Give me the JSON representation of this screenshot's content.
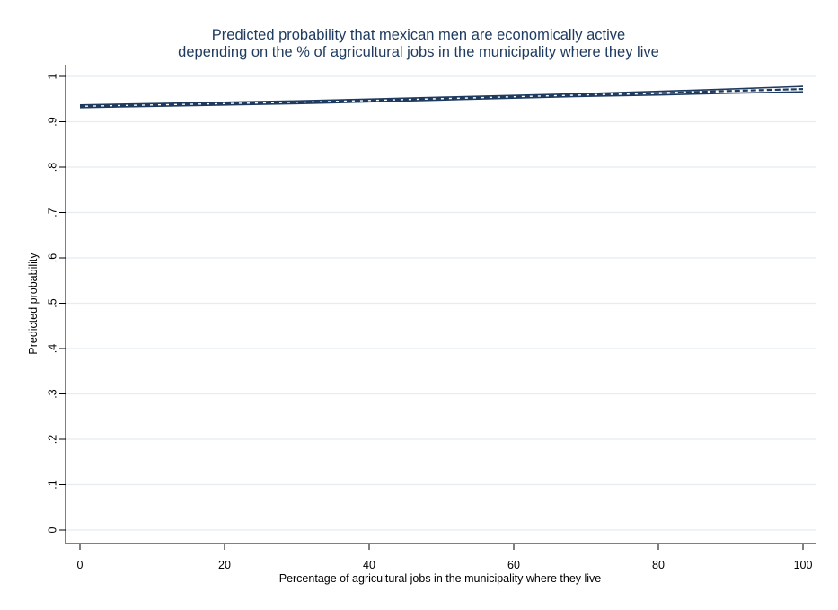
{
  "chart_data": {
    "type": "line",
    "title": [
      "Predicted probability that mexican men are economically active",
      "depending on the % of agricultural jobs in the municipality where they live"
    ],
    "xlabel": "Percentage of agricultural jobs in the municipality where they live",
    "ylabel": "Predicted probability",
    "xlim": [
      0,
      100
    ],
    "ylim": [
      0,
      1
    ],
    "xticks": [
      0,
      20,
      40,
      60,
      80,
      100
    ],
    "xtick_labels": [
      "0",
      "20",
      "40",
      "60",
      "80",
      "100"
    ],
    "yticks": [
      0,
      0.1,
      0.2,
      0.3,
      0.4,
      0.5,
      0.6,
      0.7,
      0.8,
      0.9,
      1
    ],
    "ytick_labels": [
      "0",
      ".1",
      ".2",
      ".3",
      ".4",
      ".5",
      ".6",
      ".7",
      ".8",
      ".9",
      "1"
    ],
    "grid": true,
    "x": [
      0,
      10,
      20,
      30,
      40,
      50,
      60,
      70,
      80,
      90,
      100
    ],
    "series": [
      {
        "values": [
          0.934,
          0.937,
          0.94,
          0.943,
          0.947,
          0.951,
          0.955,
          0.959,
          0.963,
          0.968,
          0.972
        ],
        "style": "dashed"
      },
      {
        "values": [
          0.937,
          0.94,
          0.943,
          0.946,
          0.95,
          0.954,
          0.958,
          0.962,
          0.967,
          0.972,
          0.978
        ],
        "style": "solid"
      },
      {
        "values": [
          0.931,
          0.934,
          0.937,
          0.94,
          0.944,
          0.948,
          0.952,
          0.956,
          0.959,
          0.963,
          0.966
        ],
        "style": "solid"
      }
    ],
    "colors": {
      "line": "#1e3a5f",
      "grid": "#e6ecef",
      "axis": "#000000",
      "title": "#1e3a5f"
    }
  }
}
